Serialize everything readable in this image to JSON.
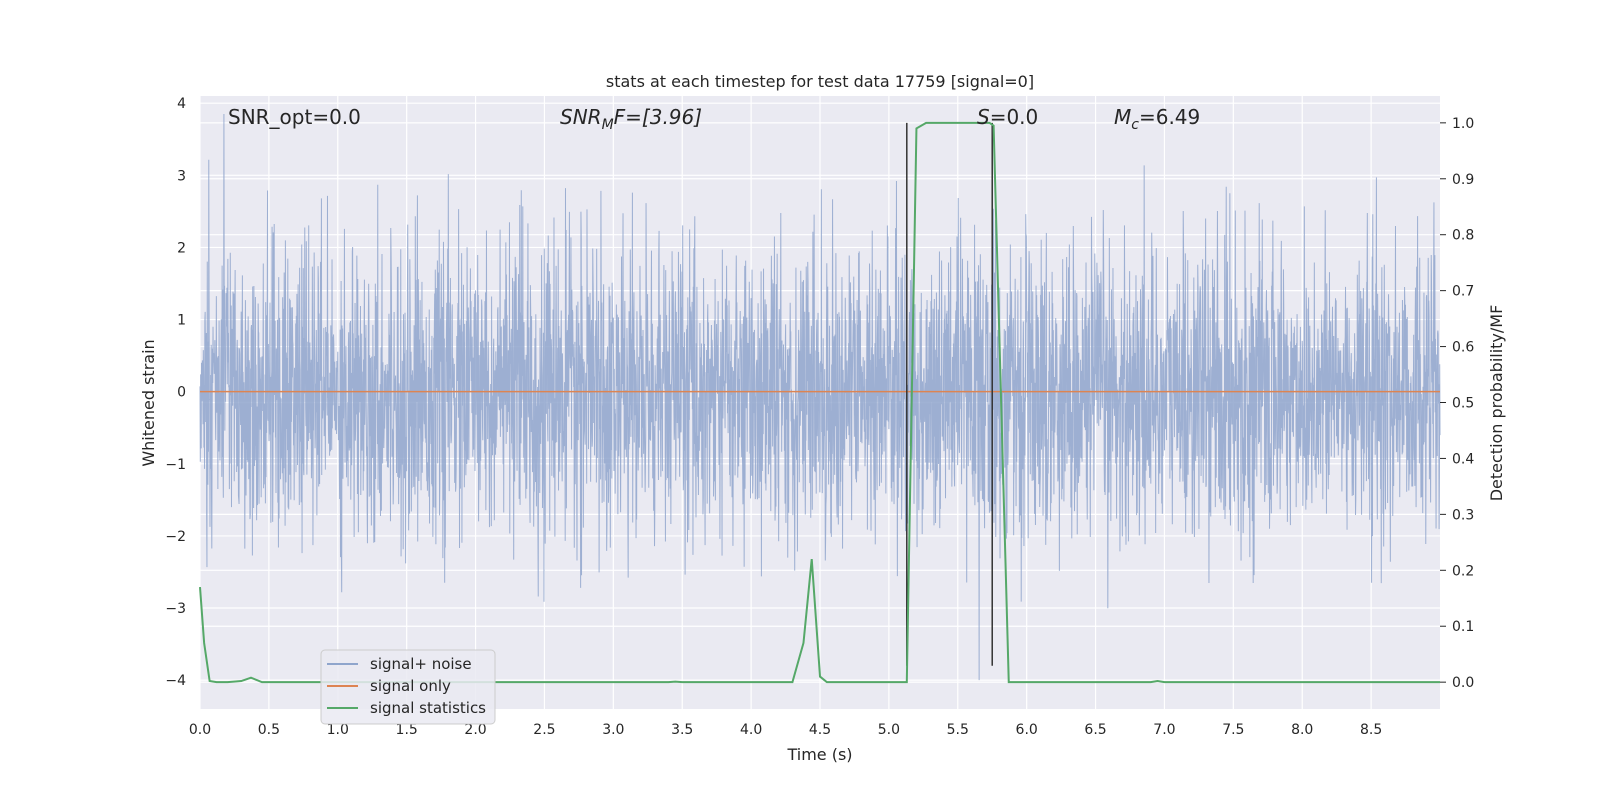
{
  "chart_data": {
    "type": "line",
    "title": "stats at each timestep for test data 17759 [signal=0]",
    "xlabel": "Time (s)",
    "ylabel": "Whitened strain",
    "y2label": "Detection probability/MF",
    "xlim": [
      0.0,
      9.0
    ],
    "ylim": [
      -4.4,
      4.1
    ],
    "y2lim": [
      -0.048,
      1.048
    ],
    "xticks": [
      "0.0",
      "0.5",
      "1.0",
      "1.5",
      "2.0",
      "2.5",
      "3.0",
      "3.5",
      "4.0",
      "4.5",
      "5.0",
      "5.5",
      "6.0",
      "6.5",
      "7.0",
      "7.5",
      "8.0",
      "8.5"
    ],
    "yticks": [
      "4",
      "3",
      "2",
      "1",
      "0",
      "−1",
      "−2",
      "−3",
      "−4"
    ],
    "y2ticks": [
      "1.0",
      "0.9",
      "0.8",
      "0.7",
      "0.6",
      "0.5",
      "0.4",
      "0.3",
      "0.2",
      "0.1",
      "0.0"
    ],
    "grid": true,
    "legend_placement": "lower-left",
    "annotations": {
      "snr_opt": "SNR_opt=0.0",
      "snr_mf_main": "SNR",
      "snr_mf_sub": "M",
      "snr_mf_rest": "F=[3.96]",
      "s_var": "S",
      "s_rest": "=0.0",
      "mc_var": "M",
      "mc_sub": "c",
      "mc_rest": "=6.49"
    },
    "vlines": [
      5.13,
      5.75
    ],
    "series": [
      {
        "name": "signal+ noise",
        "color": "#8fa5cc",
        "axis": "left",
        "noise": {
          "samples": 4096,
          "std": 1.0,
          "duration": 9.0
        }
      },
      {
        "name": "signal only",
        "color": "#dd8452",
        "axis": "left",
        "x": [
          0.0,
          9.0
        ],
        "y": [
          0.0,
          0.0
        ]
      },
      {
        "name": "signal statistics",
        "color": "#55a868",
        "axis": "right",
        "x": [
          0.0,
          0.03,
          0.07,
          0.12,
          0.2,
          0.3,
          0.37,
          0.45,
          1.0,
          2.0,
          3.0,
          3.4,
          3.45,
          3.5,
          4.0,
          4.3,
          4.38,
          4.44,
          4.5,
          4.55,
          5.0,
          5.13,
          5.2,
          5.27,
          5.5,
          5.73,
          5.76,
          5.87,
          6.0,
          6.9,
          6.95,
          7.0,
          8.0,
          9.0
        ],
        "y": [
          0.17,
          0.07,
          0.002,
          0.0,
          0.0,
          0.002,
          0.008,
          0.0,
          0.0,
          0.0,
          0.0,
          0.0,
          0.001,
          0.0,
          0.0,
          0.0,
          0.07,
          0.22,
          0.01,
          0.0,
          0.0,
          0.0,
          0.99,
          1.0,
          1.0,
          1.0,
          0.995,
          0.0,
          0.0,
          0.0,
          0.002,
          0.0,
          0.0,
          0.0
        ]
      }
    ]
  }
}
